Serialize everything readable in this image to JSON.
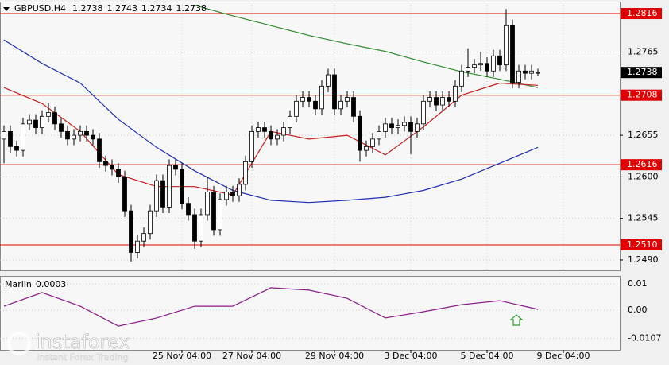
{
  "chart_data": {
    "type": "candlestick",
    "symbol": "GBPUSD,H4",
    "ohlc": [
      [
        1.265,
        1.2668,
        1.2618,
        1.266
      ],
      [
        1.266,
        1.2668,
        1.2632,
        1.264
      ],
      [
        1.264,
        1.2648,
        1.2627,
        1.2635
      ],
      [
        1.2635,
        1.2678,
        1.2627,
        1.267
      ],
      [
        1.267,
        1.2683,
        1.2662,
        1.2675
      ],
      [
        1.2675,
        1.2683,
        1.2657,
        1.2665
      ],
      [
        1.2665,
        1.2688,
        1.2657,
        1.268
      ],
      [
        1.268,
        1.2698,
        1.2672,
        1.2685
      ],
      [
        1.2685,
        1.2693,
        1.2662,
        1.267
      ],
      [
        1.267,
        1.2678,
        1.2652,
        1.266
      ],
      [
        1.266,
        1.2668,
        1.2642,
        1.265
      ],
      [
        1.265,
        1.2663,
        1.2642,
        1.2655
      ],
      [
        1.2655,
        1.2668,
        1.2647,
        1.266
      ],
      [
        1.266,
        1.2668,
        1.2647,
        1.2655
      ],
      [
        1.2655,
        1.2663,
        1.2642,
        1.265
      ],
      [
        1.265,
        1.2658,
        1.2612,
        1.262
      ],
      [
        1.262,
        1.2628,
        1.2607,
        1.2615
      ],
      [
        1.2615,
        1.2623,
        1.2602,
        1.261
      ],
      [
        1.261,
        1.2618,
        1.2592,
        1.26
      ],
      [
        1.26,
        1.2608,
        1.2547,
        1.2555
      ],
      [
        1.2555,
        1.2563,
        1.2488,
        1.25
      ],
      [
        1.25,
        1.2523,
        1.2492,
        1.2515
      ],
      [
        1.2515,
        1.2533,
        1.2507,
        1.2525
      ],
      [
        1.2525,
        1.2563,
        1.2517,
        1.2555
      ],
      [
        1.2555,
        1.2603,
        1.2547,
        1.2595
      ],
      [
        1.2595,
        1.2603,
        1.2552,
        1.256
      ],
      [
        1.256,
        1.2623,
        1.2552,
        1.2615
      ],
      [
        1.2615,
        1.2623,
        1.2602,
        1.261
      ],
      [
        1.261,
        1.2618,
        1.2557,
        1.2565
      ],
      [
        1.2565,
        1.2573,
        1.2542,
        1.255
      ],
      [
        1.255,
        1.2558,
        1.2505,
        1.2515
      ],
      [
        1.2515,
        1.2558,
        1.2507,
        1.255
      ],
      [
        1.255,
        1.26,
        1.2542,
        1.258
      ],
      [
        1.258,
        1.2588,
        1.2522,
        1.253
      ],
      [
        1.253,
        1.2578,
        1.2522,
        1.257
      ],
      [
        1.257,
        1.2588,
        1.2562,
        1.258
      ],
      [
        1.258,
        1.2588,
        1.2567,
        1.2575
      ],
      [
        1.2575,
        1.2598,
        1.2567,
        1.259
      ],
      [
        1.259,
        1.2628,
        1.2582,
        1.262
      ],
      [
        1.262,
        1.2668,
        1.2612,
        1.266
      ],
      [
        1.266,
        1.2673,
        1.2652,
        1.2665
      ],
      [
        1.2665,
        1.2673,
        1.2652,
        1.266
      ],
      [
        1.266,
        1.2668,
        1.2642,
        1.265
      ],
      [
        1.265,
        1.2663,
        1.2642,
        1.2655
      ],
      [
        1.2655,
        1.2673,
        1.2647,
        1.2665
      ],
      [
        1.2665,
        1.2688,
        1.2657,
        1.268
      ],
      [
        1.268,
        1.2708,
        1.2672,
        1.27
      ],
      [
        1.27,
        1.2713,
        1.2692,
        1.2705
      ],
      [
        1.2705,
        1.2713,
        1.2692,
        1.27
      ],
      [
        1.27,
        1.2708,
        1.2682,
        1.269
      ],
      [
        1.269,
        1.2728,
        1.2682,
        1.272
      ],
      [
        1.272,
        1.2743,
        1.2712,
        1.2735
      ],
      [
        1.2735,
        1.2743,
        1.2682,
        1.269
      ],
      [
        1.269,
        1.2708,
        1.2682,
        1.27
      ],
      [
        1.27,
        1.2713,
        1.2692,
        1.2705
      ],
      [
        1.2705,
        1.2713,
        1.2672,
        1.268
      ],
      [
        1.268,
        1.2688,
        1.262,
        1.2635
      ],
      [
        1.2635,
        1.2648,
        1.2627,
        1.264
      ],
      [
        1.264,
        1.2658,
        1.2632,
        1.265
      ],
      [
        1.265,
        1.2668,
        1.2642,
        1.266
      ],
      [
        1.266,
        1.2678,
        1.2652,
        1.267
      ],
      [
        1.267,
        1.2678,
        1.2657,
        1.2665
      ],
      [
        1.2665,
        1.2676,
        1.2657,
        1.2668
      ],
      [
        1.2668,
        1.268,
        1.266,
        1.2672
      ],
      [
        1.2672,
        1.268,
        1.263,
        1.266
      ],
      [
        1.266,
        1.2678,
        1.2652,
        1.267
      ],
      [
        1.267,
        1.2708,
        1.2662,
        1.27
      ],
      [
        1.27,
        1.2713,
        1.2692,
        1.2705
      ],
      [
        1.2705,
        1.2713,
        1.2687,
        1.2695
      ],
      [
        1.2695,
        1.2713,
        1.2687,
        1.2705
      ],
      [
        1.2705,
        1.2713,
        1.2692,
        1.27
      ],
      [
        1.27,
        1.2728,
        1.2692,
        1.272
      ],
      [
        1.272,
        1.2748,
        1.2712,
        1.274
      ],
      [
        1.274,
        1.277,
        1.2732,
        1.2745
      ],
      [
        1.2745,
        1.2756,
        1.2737,
        1.2748
      ],
      [
        1.2748,
        1.2765,
        1.274,
        1.275
      ],
      [
        1.275,
        1.2758,
        1.2732,
        1.274
      ],
      [
        1.274,
        1.2768,
        1.2732,
        1.276
      ],
      [
        1.276,
        1.2768,
        1.274,
        1.2748
      ],
      [
        1.2748,
        1.2822,
        1.274,
        1.28
      ],
      [
        1.28,
        1.2808,
        1.2717,
        1.2725
      ],
      [
        1.2725,
        1.2748,
        1.2717,
        1.274
      ],
      [
        1.274,
        1.2748,
        1.2729,
        1.2737
      ],
      [
        1.2737,
        1.2748,
        1.2729,
        1.274
      ],
      [
        1.2738,
        1.2743,
        1.2734,
        1.2738
      ]
    ],
    "ylim": [
      1.24763,
      1.28318
    ],
    "yticks": [
      {
        "value": 1.249,
        "label": "1.2490"
      },
      1.2545,
      {
        "value": 1.26,
        "label": "1.2600"
      },
      1.2655,
      1.2765
    ],
    "grid": true,
    "levels": [
      1.2816,
      1.2708,
      1.2616,
      {
        "value": 1.251,
        "label": "1.2510"
      }
    ],
    "level_color": "#e00000",
    "xlim": [
      -0.625,
      96.875
    ],
    "xticks": [
      {
        "value": 28,
        "label": "25 Nov 04:00"
      },
      {
        "value": 39,
        "label": "27 Nov 04:00"
      },
      {
        "value": 52,
        "label": "29 Nov 04:00"
      },
      {
        "value": 64,
        "label": "3 Dec 04:00"
      },
      {
        "value": 76,
        "label": "5 Dec 04:00"
      },
      {
        "value": 88,
        "label": "9 Dec 04:00"
      }
    ],
    "x": [
      0,
      6,
      12,
      18,
      24,
      30,
      36,
      42,
      48,
      54,
      60,
      66,
      72,
      78,
      84
    ],
    "series": [
      {
        "color": "#2e8b2e",
        "values": [
          null,
          null,
          null,
          null,
          null,
          1.2827,
          1.2813,
          1.28,
          1.2787,
          1.2776,
          1.2766,
          1.2752,
          1.2739,
          1.2729,
          1.2718
        ]
      },
      {
        "color": "#1f2fb4",
        "values": [
          1.2781,
          1.275,
          1.2724,
          1.2676,
          1.2639,
          1.2608,
          1.2582,
          1.2569,
          1.2566,
          1.2569,
          1.2573,
          1.2582,
          1.2597,
          1.2618,
          1.2639
        ]
      },
      {
        "color": "#c81e1e",
        "values": [
          1.2718,
          1.2697,
          1.266,
          1.2603,
          1.2587,
          1.2587,
          1.2576,
          1.266,
          1.265,
          1.2655,
          1.2629,
          1.2666,
          1.2708,
          1.2724,
          1.2721
        ]
      }
    ],
    "indicator": {
      "name": "Marlin",
      "color": "#8b1a8b",
      "values": [
        0.0015,
        0.0067,
        0.0015,
        -0.0061,
        -0.003,
        0.0015,
        0.0015,
        0.0085,
        0.0076,
        0.0045,
        -0.003,
        -0.0006,
        0.0021,
        0.0036,
        0.0003
      ],
      "ylim": [
        -0.01515,
        0.01303
      ],
      "yticks": [
        0.01,
        {
          "value": 0,
          "label": "0.00"
        },
        -0.0107
      ]
    }
  },
  "watermark": {
    "brand": "instaforex",
    "tagline": "Instant Forex Trading"
  }
}
